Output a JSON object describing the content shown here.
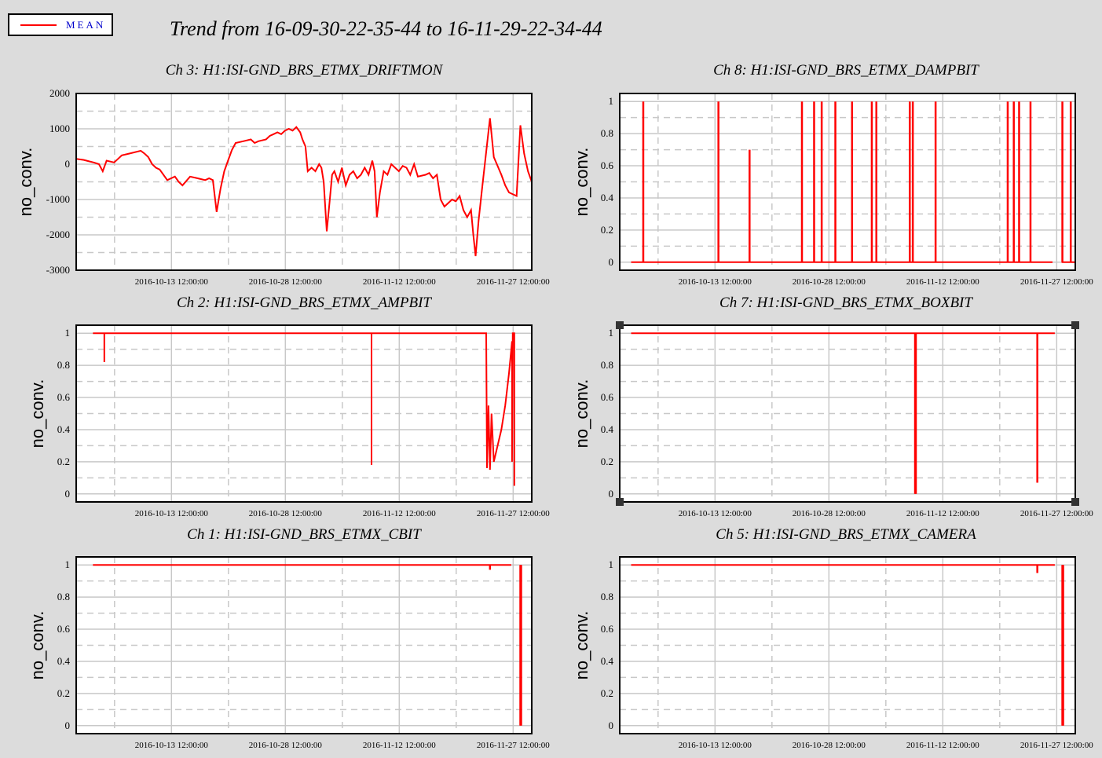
{
  "header": {
    "title": "Trend from 16-09-30-22-35-44 to 16-11-29-22-34-44",
    "legend_label": "MEAN",
    "legend_color": "#ff0000"
  },
  "colors": {
    "background": "#dcdcdc",
    "series": "#ff0000",
    "grid": "#c8c8c8"
  },
  "chart_data": [
    {
      "type": "line",
      "title": "Ch 3: H1:ISI-GND_BRS_ETMX_DRIFTMON",
      "ylabel": "no_conv.",
      "xlabel": "",
      "xlim": [
        "2016-09-30 22:35:44",
        "2016-11-29 22:34:44"
      ],
      "x_ticks": [
        "2016-10-13 12:00:00",
        "2016-10-28 12:00:00",
        "2016-11-12 12:00:00",
        "2016-11-27 12:00:00"
      ],
      "ylim": [
        -3000,
        2000
      ],
      "y_ticks": [
        "2000",
        "1000",
        "0",
        "-1000",
        "-2000",
        "-3000"
      ],
      "y_tick_values": [
        2000,
        1000,
        0,
        -1000,
        -2000,
        -3000
      ],
      "grid": true,
      "series": [
        {
          "name": "MEAN",
          "points": [
            [
              0,
              150
            ],
            [
              1,
              120
            ],
            [
              1.7,
              80
            ],
            [
              2.3,
              50
            ],
            [
              3,
              0
            ],
            [
              3.5,
              -200
            ],
            [
              4,
              100
            ],
            [
              5,
              50
            ],
            [
              5.5,
              150
            ],
            [
              6,
              250
            ],
            [
              7,
              300
            ],
            [
              8.5,
              380
            ],
            [
              9,
              300
            ],
            [
              9.5,
              200
            ],
            [
              10,
              0
            ],
            [
              10.5,
              -100
            ],
            [
              11,
              -150
            ],
            [
              12,
              -450
            ],
            [
              12.5,
              -400
            ],
            [
              13,
              -350
            ],
            [
              13.5,
              -500
            ],
            [
              14,
              -600
            ],
            [
              15,
              -350
            ],
            [
              16,
              -400
            ],
            [
              17,
              -450
            ],
            [
              17.5,
              -400
            ],
            [
              18,
              -450
            ],
            [
              18.5,
              -1350
            ],
            [
              19,
              -700
            ],
            [
              19.5,
              -200
            ],
            [
              20,
              100
            ],
            [
              20.5,
              400
            ],
            [
              21,
              600
            ],
            [
              22,
              650
            ],
            [
              23,
              700
            ],
            [
              23.5,
              600
            ],
            [
              24,
              650
            ],
            [
              25,
              700
            ],
            [
              25.5,
              800
            ],
            [
              26,
              850
            ],
            [
              26.5,
              900
            ],
            [
              27,
              850
            ],
            [
              27.5,
              950
            ],
            [
              28,
              1000
            ],
            [
              28.5,
              950
            ],
            [
              29,
              1050
            ],
            [
              29.5,
              900
            ],
            [
              29.8,
              700
            ],
            [
              30.2,
              500
            ],
            [
              30.5,
              -200
            ],
            [
              31,
              -100
            ],
            [
              31.5,
              -200
            ],
            [
              32,
              0
            ],
            [
              32.3,
              -100
            ],
            [
              32.6,
              -500
            ],
            [
              33,
              -1900
            ],
            [
              33.4,
              -1000
            ],
            [
              33.7,
              -300
            ],
            [
              34,
              -200
            ],
            [
              34.5,
              -500
            ],
            [
              35,
              -100
            ],
            [
              35.5,
              -600
            ],
            [
              36,
              -300
            ],
            [
              36.5,
              -200
            ],
            [
              37,
              -400
            ],
            [
              37.5,
              -300
            ],
            [
              38,
              -100
            ],
            [
              38.5,
              -300
            ],
            [
              39,
              100
            ],
            [
              39.3,
              -200
            ],
            [
              39.6,
              -1500
            ],
            [
              40,
              -800
            ],
            [
              40.5,
              -200
            ],
            [
              41,
              -300
            ],
            [
              41.5,
              0
            ],
            [
              42,
              -100
            ],
            [
              42.5,
              -200
            ],
            [
              43,
              -50
            ],
            [
              43.5,
              -100
            ],
            [
              44,
              -300
            ],
            [
              44.5,
              0
            ],
            [
              45,
              -350
            ],
            [
              46,
              -300
            ],
            [
              46.5,
              -250
            ],
            [
              47,
              -400
            ],
            [
              47.5,
              -300
            ],
            [
              48,
              -1000
            ],
            [
              48.5,
              -1200
            ],
            [
              49,
              -1100
            ],
            [
              49.5,
              -1000
            ],
            [
              50,
              -1050
            ],
            [
              50.5,
              -900
            ],
            [
              51,
              -1300
            ],
            [
              51.5,
              -1500
            ],
            [
              52,
              -1300
            ],
            [
              52.3,
              -2000
            ],
            [
              52.6,
              -2600
            ],
            [
              53,
              -1600
            ],
            [
              53.5,
              -600
            ],
            [
              54.5,
              1300
            ],
            [
              55,
              200
            ],
            [
              56,
              -300
            ],
            [
              56.5,
              -600
            ],
            [
              57,
              -800
            ],
            [
              58,
              -900
            ],
            [
              58.5,
              1100
            ],
            [
              59,
              300
            ],
            [
              59.5,
              -200
            ],
            [
              60,
              -500
            ]
          ]
        }
      ]
    },
    {
      "type": "line",
      "title": "Ch 8: H1:ISI-GND_BRS_ETMX_DAMPBIT",
      "ylabel": "no_conv.",
      "xlabel": "",
      "xlim": [
        "2016-09-30 22:35:44",
        "2016-11-29 22:34:44"
      ],
      "x_ticks": [
        "2016-10-13 12:00:00",
        "2016-10-28 12:00:00",
        "2016-11-12 12:00:00",
        "2016-11-27 12:00:00"
      ],
      "ylim": [
        -0.05,
        1.05
      ],
      "y_ticks": [
        "1",
        "0.8",
        "0.6",
        "0.4",
        "0.2",
        "0"
      ],
      "y_tick_values": [
        1,
        0.8,
        0.6,
        0.4,
        0.2,
        0
      ],
      "grid": true,
      "series": [
        {
          "name": "MEAN",
          "base": 0,
          "line_range": [
            1.5,
            57
          ],
          "tail_range": [
            58.2,
            59.9
          ],
          "spikes": [
            [
              3.1,
              1
            ],
            [
              13,
              1
            ],
            [
              17.1,
              0.7
            ],
            [
              24,
              1
            ],
            [
              25.6,
              1
            ],
            [
              26.6,
              1
            ],
            [
              28.4,
              1
            ],
            [
              30.6,
              1
            ],
            [
              33.2,
              1
            ],
            [
              33.8,
              1
            ],
            [
              38.2,
              1
            ],
            [
              38.6,
              1
            ],
            [
              41.6,
              1
            ],
            [
              51.1,
              1
            ],
            [
              51.9,
              1
            ],
            [
              52.6,
              1
            ],
            [
              54.1,
              1
            ],
            [
              58.3,
              1
            ],
            [
              59.4,
              1
            ]
          ]
        }
      ]
    },
    {
      "type": "line",
      "title": "Ch 2: H1:ISI-GND_BRS_ETMX_AMPBIT",
      "ylabel": "no_conv.",
      "xlabel": "",
      "xlim": [
        "2016-09-30 22:35:44",
        "2016-11-29 22:34:44"
      ],
      "x_ticks": [
        "2016-10-13 12:00:00",
        "2016-10-28 12:00:00",
        "2016-11-12 12:00:00",
        "2016-11-27 12:00:00"
      ],
      "ylim": [
        -0.05,
        1.05
      ],
      "y_ticks": [
        "1",
        "0.8",
        "0.6",
        "0.4",
        "0.2",
        "0"
      ],
      "y_tick_values": [
        1,
        0.8,
        0.6,
        0.4,
        0.2,
        0
      ],
      "grid": true,
      "series": [
        {
          "name": "MEAN",
          "points": [
            [
              2.2,
              1
            ],
            [
              3.7,
              1
            ],
            [
              3.7,
              0.82
            ],
            [
              3.7,
              1
            ],
            [
              38.9,
              1
            ],
            [
              38.9,
              0.18
            ],
            [
              38.9,
              1
            ],
            [
              54,
              1
            ],
            [
              54.1,
              0.16
            ],
            [
              54.3,
              0.55
            ],
            [
              54.5,
              0.15
            ],
            [
              54.7,
              0.5
            ],
            [
              55,
              0.2
            ],
            [
              55.5,
              0.3
            ],
            [
              56,
              0.4
            ],
            [
              56.5,
              0.55
            ],
            [
              57,
              0.75
            ],
            [
              57.4,
              0.95
            ],
            [
              57.4,
              0.2
            ],
            [
              57.5,
              1
            ],
            [
              57.7,
              1
            ],
            [
              57.7,
              0.05
            ]
          ]
        }
      ]
    },
    {
      "type": "line",
      "title": "Ch 7: H1:ISI-GND_BRS_ETMX_BOXBIT",
      "ylabel": "no_conv.",
      "xlabel": "",
      "xlim": [
        "2016-09-30 22:35:44",
        "2016-11-29 22:34:44"
      ],
      "x_ticks": [
        "2016-10-13 12:00:00",
        "2016-10-28 12:00:00",
        "2016-11-12 12:00:00",
        "2016-11-27 12:00:00"
      ],
      "ylim": [
        -0.05,
        1.05
      ],
      "y_ticks": [
        "1",
        "0.8",
        "0.6",
        "0.4",
        "0.2",
        "0"
      ],
      "y_tick_values": [
        1,
        0.8,
        0.6,
        0.4,
        0.2,
        0
      ],
      "grid": true,
      "series": [
        {
          "name": "MEAN",
          "base": 1,
          "line_range": [
            1.5,
            57.3
          ],
          "tail_range": null,
          "spikes": [
            [
              38.9,
              0
            ],
            [
              39,
              0
            ],
            [
              55,
              0.07
            ]
          ]
        }
      ]
    },
    {
      "type": "line",
      "title": "Ch 1: H1:ISI-GND_BRS_ETMX_CBIT",
      "ylabel": "no_conv.",
      "xlabel": "",
      "xlim": [
        "2016-09-30 22:35:44",
        "2016-11-29 22:34:44"
      ],
      "x_ticks": [
        "2016-10-13 12:00:00",
        "2016-10-28 12:00:00",
        "2016-11-12 12:00:00",
        "2016-11-27 12:00:00"
      ],
      "ylim": [
        -0.05,
        1.05
      ],
      "y_ticks": [
        "1",
        "0.8",
        "0.6",
        "0.4",
        "0.2",
        "0"
      ],
      "y_tick_values": [
        1,
        0.8,
        0.6,
        0.4,
        0.2,
        0
      ],
      "grid": true,
      "series": [
        {
          "name": "MEAN",
          "base": 1,
          "line_range": [
            2.2,
            57.3
          ],
          "tail_range": null,
          "spikes": [
            [
              54.5,
              0.97
            ],
            [
              58.5,
              0
            ],
            [
              58.6,
              0
            ]
          ]
        }
      ]
    },
    {
      "type": "line",
      "title": "Ch 5: H1:ISI-GND_BRS_ETMX_CAMERA",
      "ylabel": "no_conv.",
      "xlabel": "",
      "xlim": [
        "2016-09-30 22:35:44",
        "2016-11-29 22:34:44"
      ],
      "x_ticks": [
        "2016-10-13 12:00:00",
        "2016-10-28 12:00:00",
        "2016-11-12 12:00:00",
        "2016-11-27 12:00:00"
      ],
      "ylim": [
        -0.05,
        1.05
      ],
      "y_ticks": [
        "1",
        "0.8",
        "0.6",
        "0.4",
        "0.2",
        "0"
      ],
      "y_tick_values": [
        1,
        0.8,
        0.6,
        0.4,
        0.2,
        0
      ],
      "grid": true,
      "series": [
        {
          "name": "MEAN",
          "base": 1,
          "line_range": [
            1.5,
            57.3
          ],
          "tail_range": null,
          "spikes": [
            [
              55,
              0.95
            ],
            [
              58.3,
              0
            ],
            [
              58.4,
              0
            ]
          ]
        }
      ]
    }
  ]
}
